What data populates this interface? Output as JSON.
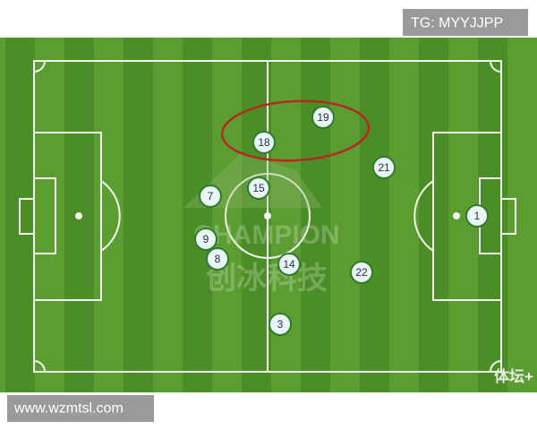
{
  "header": {
    "tag": "TG: MYYJJPP"
  },
  "players": [
    {
      "number": "19"
    },
    {
      "number": "18"
    },
    {
      "number": "21"
    },
    {
      "number": "15"
    },
    {
      "number": "7"
    },
    {
      "number": "1"
    },
    {
      "number": "9"
    },
    {
      "number": "8"
    },
    {
      "number": "14"
    },
    {
      "number": "22"
    },
    {
      "number": "3"
    }
  ],
  "watermark": {
    "brand": "CHAMPION",
    "chinese": "创冰科技",
    "corner": "体坛+"
  },
  "footer": {
    "url": "www.wzmtsl.com"
  }
}
